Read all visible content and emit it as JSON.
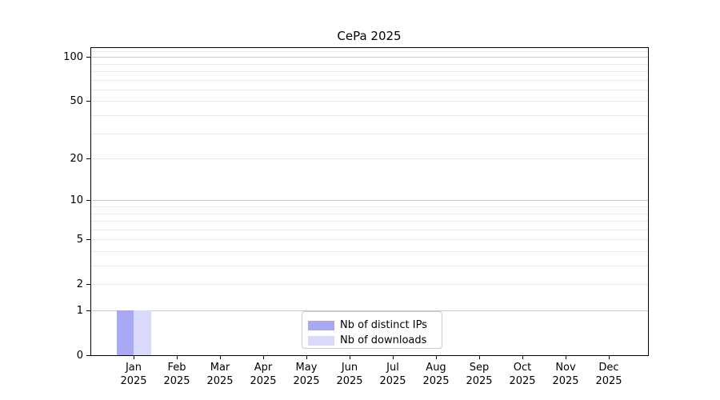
{
  "chart_data": {
    "type": "bar",
    "title": "CePa 2025",
    "categories": [
      "Jan",
      "Feb",
      "Mar",
      "Apr",
      "May",
      "Jun",
      "Jul",
      "Aug",
      "Sep",
      "Oct",
      "Nov",
      "Dec"
    ],
    "x_tick_year": "2025",
    "series": [
      {
        "name": "Nb of distinct IPs",
        "color": "#a8a8f4",
        "values": [
          1,
          0,
          0,
          0,
          0,
          0,
          0,
          0,
          0,
          0,
          0,
          0
        ]
      },
      {
        "name": "Nb of downloads",
        "color": "#d9d9f9",
        "values": [
          1,
          0,
          0,
          0,
          0,
          0,
          0,
          0,
          0,
          0,
          0,
          0
        ]
      }
    ],
    "y_scale": "log1p",
    "ylim": [
      0,
      115
    ],
    "y_tick_values": [
      100,
      50,
      20,
      10,
      5,
      2,
      1,
      0
    ],
    "y_tick_labels": [
      "100",
      "50",
      "20",
      "10",
      "5",
      "2",
      "1",
      "0"
    ],
    "y_grid_major": [
      1,
      10,
      100
    ],
    "y_grid_minor": [
      2,
      3,
      4,
      5,
      6,
      7,
      8,
      9,
      20,
      30,
      40,
      50,
      60,
      70,
      80,
      90,
      110
    ],
    "grid": true,
    "legend_position": "lower-center",
    "colors": {
      "grid_major": "#c9c9c9",
      "grid_minor": "#ebebeb",
      "spine": "#000000",
      "text": "#000000",
      "background": "#ffffff"
    }
  }
}
